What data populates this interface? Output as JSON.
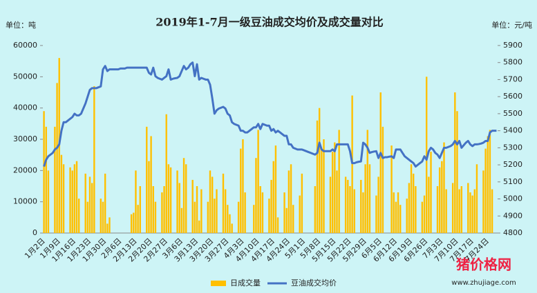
{
  "chart_data": {
    "type": "bar-line",
    "title": "2019年1-7月一级豆油成交均价及成交量对比",
    "y_unit": "单位：吨",
    "y2_unit": "单位：元/吨",
    "watermark": {
      "site": "猪价格网",
      "url": "www.zhujiage.com"
    },
    "categories": [
      "1月2日",
      null,
      null,
      null,
      null,
      null,
      null,
      "1月9日",
      null,
      null,
      null,
      null,
      null,
      null,
      "1月16日",
      null,
      null,
      null,
      null,
      null,
      null,
      "1月23日",
      null,
      null,
      null,
      null,
      null,
      null,
      "1月30日",
      null,
      null,
      null,
      null,
      null,
      null,
      "2月6日",
      null,
      null,
      null,
      null,
      null,
      null,
      "2月13日",
      null,
      null,
      null,
      null,
      null,
      null,
      "2月20日",
      null,
      null,
      null,
      null,
      null,
      null,
      "2月27日",
      null,
      null,
      null,
      null,
      null,
      null,
      "3月6日",
      null,
      null,
      null,
      null,
      null,
      null,
      "3月13日",
      null,
      null,
      null,
      null,
      null,
      null,
      "3月20日",
      null,
      null,
      null,
      null,
      null,
      null,
      "3月27日",
      null,
      null,
      null,
      null,
      null,
      null,
      "4月3日",
      null,
      null,
      null,
      null,
      null,
      null,
      "4月10日",
      null,
      null,
      null,
      null,
      null,
      null,
      "4月17日",
      null,
      null,
      null,
      null,
      null,
      null,
      "4月24日",
      null,
      null,
      null,
      null,
      null,
      null,
      "5月1日",
      null,
      null,
      null,
      null,
      null,
      null,
      "5月8日",
      null,
      null,
      null,
      null,
      null,
      null,
      "5月15日",
      null,
      null,
      null,
      null,
      null,
      null,
      "5月22日",
      null,
      null,
      null,
      null,
      null,
      null,
      "5月29日",
      null,
      null,
      null,
      null,
      null,
      null,
      "6月5日",
      null,
      null,
      null,
      null,
      null,
      null,
      "6月12日",
      null,
      null,
      null,
      null,
      null,
      null,
      "6月19日",
      null,
      null,
      null,
      null,
      null,
      null,
      "6月26日",
      null,
      null,
      null,
      null,
      null,
      null,
      "7月3日",
      null,
      null,
      null,
      null,
      null,
      null,
      "7月10日",
      null,
      null,
      null,
      null,
      null,
      null,
      "7月17日",
      null,
      null,
      null,
      null,
      null,
      null,
      "7月24日",
      null,
      null,
      null,
      null
    ],
    "series": [
      {
        "name": "日成交量",
        "type": "bar",
        "color": "#ffc000",
        "values": [
          39000,
          34000,
          20000,
          null,
          null,
          34000,
          48000,
          56000,
          25000,
          22000,
          null,
          null,
          21000,
          20000,
          22000,
          23000,
          11000,
          null,
          null,
          19000,
          10000,
          18000,
          16000,
          47000,
          null,
          null,
          11000,
          10000,
          19000,
          3000,
          5000,
          null,
          null,
          null,
          null,
          null,
          null,
          null,
          null,
          null,
          6000,
          6500,
          20000,
          9000,
          15000,
          null,
          null,
          34000,
          23000,
          31000,
          15000,
          10000,
          null,
          null,
          13000,
          15000,
          38000,
          22000,
          21000,
          null,
          null,
          20000,
          16000,
          8000,
          24000,
          22000,
          null,
          null,
          17000,
          10000,
          15000,
          4000,
          14000,
          null,
          null,
          10000,
          20000,
          18000,
          11000,
          14000,
          null,
          null,
          19000,
          14000,
          9000,
          6000,
          3000,
          null,
          null,
          10000,
          27000,
          30000,
          13000,
          null,
          null,
          null,
          9000,
          24000,
          33000,
          15000,
          13000,
          null,
          null,
          11000,
          17000,
          23000,
          28000,
          5000,
          null,
          null,
          13000,
          8000,
          20000,
          22000,
          9000,
          null,
          null,
          12000,
          19000,
          null,
          null,
          null,
          null,
          null,
          15000,
          36000,
          40000,
          27000,
          30000,
          null,
          null,
          18000,
          26000,
          29000,
          20000,
          33000,
          null,
          null,
          18000,
          17000,
          15000,
          44000,
          14000,
          null,
          null,
          17000,
          13000,
          22000,
          33000,
          22000,
          null,
          null,
          12000,
          18000,
          45000,
          34000,
          null,
          null,
          null,
          28000,
          13000,
          10000,
          13000,
          9000,
          null,
          null,
          11000,
          16000,
          22000,
          19000,
          15000,
          null,
          null,
          10000,
          12000,
          50000,
          18000,
          26000,
          null,
          null,
          15000,
          21000,
          23000,
          29000,
          14000,
          null,
          null,
          16000,
          45000,
          39000,
          14000,
          15000,
          null,
          null,
          16000,
          13000,
          12000,
          14000,
          22000,
          null,
          null,
          20000,
          27000,
          31000,
          33000,
          14000,
          null,
          null
        ]
      },
      {
        "name": "豆油成交均价",
        "type": "line",
        "axis": "y2",
        "color": "#4472c4",
        "values": [
          5190,
          5230,
          5250,
          5260,
          5270,
          5290,
          5300,
          5320,
          5400,
          5450,
          5450,
          5460,
          5470,
          5480,
          5500,
          5490,
          5490,
          5500,
          5530,
          5560,
          5600,
          5640,
          5650,
          5650,
          5650,
          5655,
          5660,
          5760,
          5780,
          5750,
          5760,
          5760,
          5760,
          5760,
          5760,
          5765,
          5765,
          5765,
          5770,
          5770,
          5770,
          5770,
          5770,
          5770,
          5770,
          5770,
          5770,
          5770,
          5740,
          5730,
          5770,
          5720,
          5710,
          5705,
          5700,
          5710,
          5720,
          5760,
          5700,
          5705,
          5708,
          5710,
          5720,
          5750,
          5780,
          5760,
          5770,
          5790,
          5800,
          5720,
          5790,
          5700,
          5710,
          5705,
          5700,
          5700,
          5670,
          5590,
          5500,
          5520,
          5530,
          5535,
          5540,
          5530,
          5500,
          5490,
          5450,
          5440,
          5435,
          5430,
          5400,
          5400,
          5390,
          5390,
          5400,
          5410,
          5420,
          5420,
          5440,
          5410,
          5440,
          5435,
          5430,
          5430,
          5400,
          5410,
          5390,
          5400,
          5390,
          5380,
          5370,
          5370,
          5320,
          5320,
          5300,
          5295,
          5290,
          5290,
          5290,
          5285,
          5280,
          5275,
          5270,
          5265,
          5260,
          5270,
          5330,
          5290,
          5280,
          5280,
          5280,
          5280,
          5290,
          5280,
          5320,
          5320,
          5320,
          5320,
          5320,
          5320,
          5280,
          5210,
          5210,
          5215,
          5218,
          5220,
          5330,
          5320,
          5300,
          5270,
          5275,
          5278,
          5280,
          5240,
          5270,
          5240,
          5245,
          5245,
          5248,
          5250,
          5240,
          5290,
          5290,
          5290,
          5270,
          5250,
          5240,
          5230,
          5220,
          5210,
          5190,
          5200,
          5210,
          5220,
          5250,
          5230,
          5280,
          5300,
          5290,
          5270,
          5260,
          5240,
          5270,
          5300,
          5300,
          5305,
          5310,
          5320,
          5340,
          5320,
          5340,
          5300,
          5315,
          5330,
          5340,
          5320,
          5310,
          5320,
          5320,
          5322,
          5325,
          5330,
          5340,
          5340,
          5390,
          5400,
          5400,
          5400
        ]
      }
    ],
    "ylim": [
      0,
      60000
    ],
    "yticks": [
      0,
      10000,
      20000,
      30000,
      40000,
      50000,
      60000
    ],
    "y2lim": [
      4800,
      5900
    ],
    "y2ticks": [
      4800,
      4900,
      5000,
      5100,
      5200,
      5300,
      5400,
      5500,
      5600,
      5700,
      5800,
      5900
    ],
    "legend": "bottom"
  }
}
